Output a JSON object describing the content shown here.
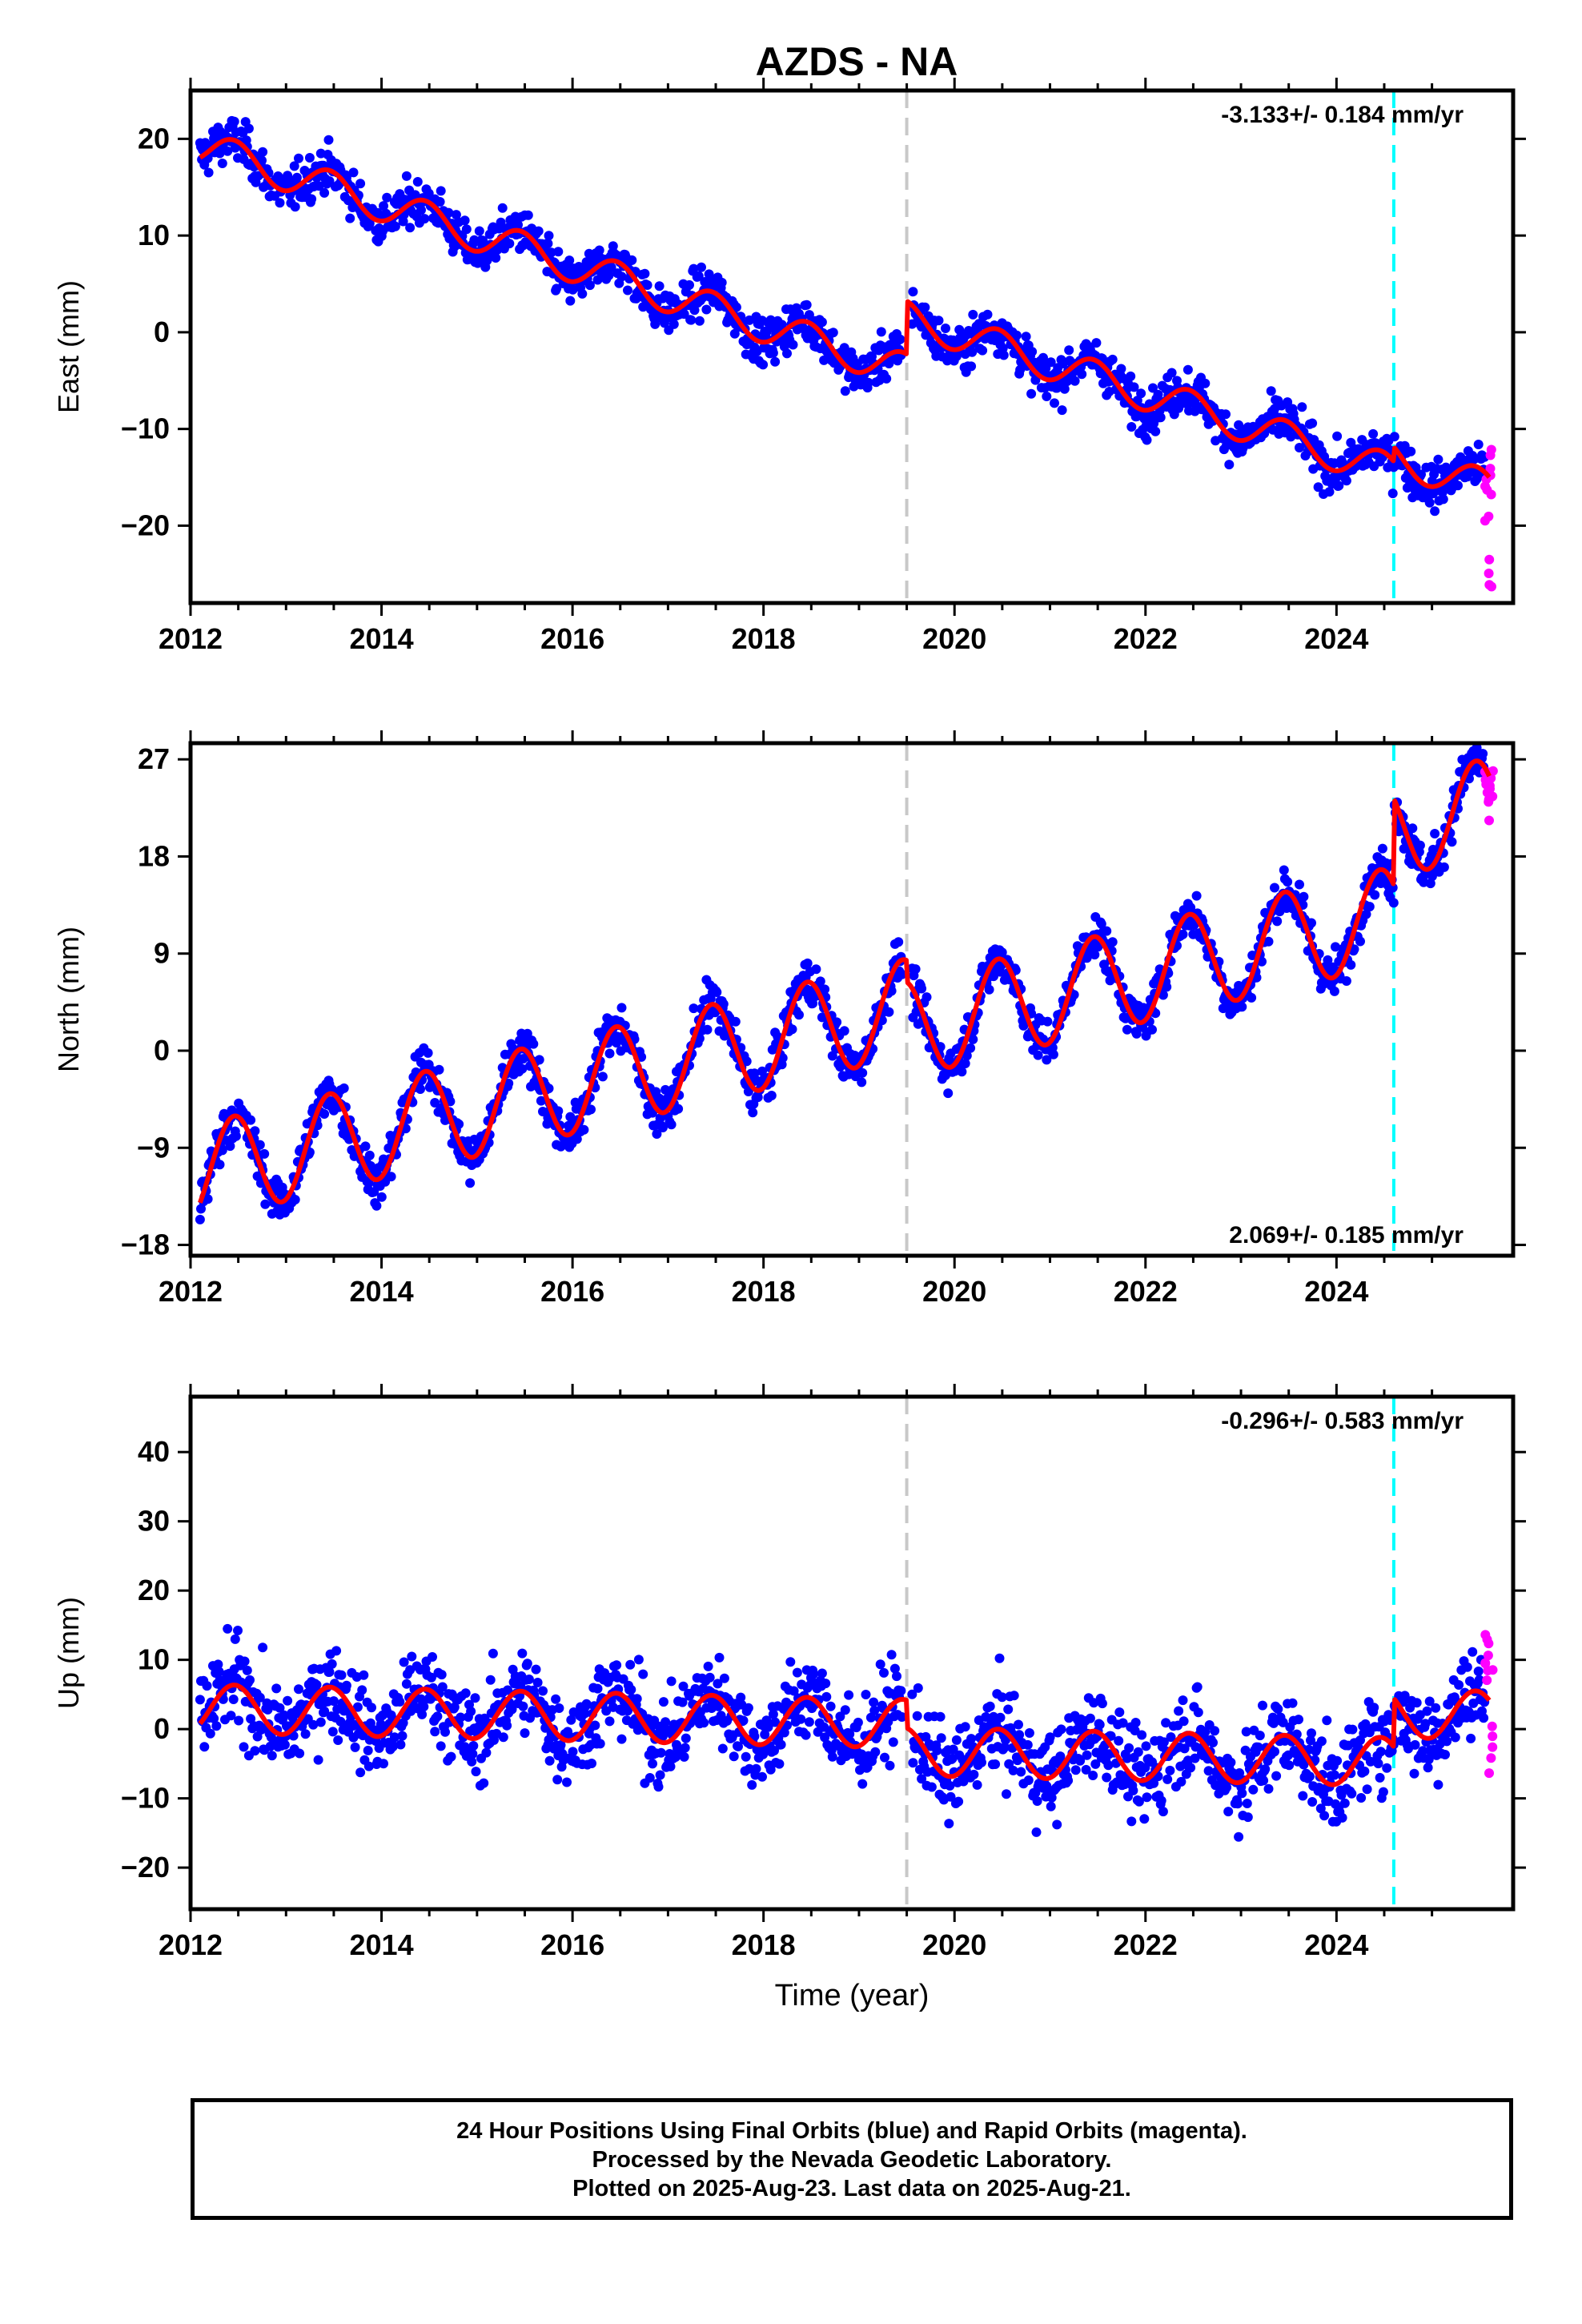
{
  "title": "AZDS - NA",
  "footer": {
    "line1": "24 Hour Positions Using Final Orbits (blue) and Rapid Orbits (magenta).",
    "line2": "Processed by the Nevada Geodetic Laboratory.",
    "line3": "Plotted on 2025-Aug-23. Last data on 2025-Aug-21."
  },
  "colors": {
    "final_orbits": "#0000ff",
    "rapid_orbits": "#ff00ff",
    "model": "#ff0000",
    "equipment_change": "#c8c8c8",
    "earthquake": "#00ffff"
  },
  "chart_data": [
    {
      "type": "scatter",
      "ylabel": "East (mm)",
      "ylim": [
        -28,
        25
      ],
      "xlim": [
        2012.0,
        2025.85
      ],
      "xticks": [
        2012,
        2014,
        2016,
        2018,
        2020,
        2022,
        2024
      ],
      "yticks": [
        20,
        10,
        0,
        -10,
        -20
      ],
      "rate_label": "-3.133+/- 0.184 mm/yr",
      "rate_label_position": "top-right",
      "grid": false,
      "vertical_lines": [
        {
          "x": 2019.5,
          "kind": "equipment-change",
          "color": "#c8c8c8"
        },
        {
          "x": 2024.6,
          "kind": "earthquake",
          "color": "#00ffff"
        }
      ],
      "model_series": {
        "name": "model",
        "trend_mm_per_yr": -3.133,
        "annual_amplitude_mm": 1.8,
        "intercept_2012_mm": 19.5,
        "offsets": [
          {
            "x": 2019.5,
            "step_mm": 5.5
          },
          {
            "x": 2024.6,
            "step_mm": 1.5
          }
        ]
      },
      "final_orbits": {
        "x_range": [
          2012.1,
          2025.55
        ],
        "scatter_mm": 1.6
      },
      "rapid_orbits": {
        "x_range": [
          2025.55,
          2025.64
        ],
        "y_range": [
          -26.5,
          -12
        ]
      }
    },
    {
      "type": "scatter",
      "ylabel": "North (mm)",
      "ylim": [
        -19,
        28.5
      ],
      "xlim": [
        2012.0,
        2025.85
      ],
      "xticks": [
        2012,
        2014,
        2016,
        2018,
        2020,
        2022,
        2024
      ],
      "yticks": [
        27,
        18,
        9,
        0,
        -9,
        -18
      ],
      "rate_label": "2.069+/- 0.185 mm/yr",
      "rate_label_position": "bottom-right",
      "grid": false,
      "vertical_lines": [
        {
          "x": 2019.5,
          "kind": "equipment-change",
          "color": "#c8c8c8"
        },
        {
          "x": 2024.6,
          "kind": "earthquake",
          "color": "#00ffff"
        }
      ],
      "model_series": {
        "name": "model",
        "trend_mm_per_yr": 2.069,
        "annual_amplitude_mm": 4.5,
        "intercept_2012_mm": -11.5,
        "offsets": [
          {
            "x": 2019.5,
            "step_mm": -2.0
          },
          {
            "x": 2024.6,
            "step_mm": 8.0
          }
        ]
      },
      "final_orbits": {
        "x_range": [
          2012.1,
          2025.55
        ],
        "scatter_mm": 1.5
      },
      "rapid_orbits": {
        "x_range": [
          2025.55,
          2025.64
        ],
        "y_range": [
          21,
          26
        ]
      }
    },
    {
      "type": "scatter",
      "ylabel": "Up (mm)",
      "xlabel": "Time (year)",
      "ylim": [
        -26,
        48
      ],
      "xlim": [
        2012.0,
        2025.85
      ],
      "xticks": [
        2012,
        2014,
        2016,
        2018,
        2020,
        2022,
        2024
      ],
      "yticks": [
        40,
        30,
        20,
        10,
        0,
        -10,
        -20
      ],
      "rate_label": "-0.296+/- 0.583 mm/yr",
      "rate_label_position": "top-right",
      "grid": false,
      "vertical_lines": [
        {
          "x": 2019.5,
          "kind": "equipment-change",
          "color": "#c8c8c8"
        },
        {
          "x": 2024.6,
          "kind": "earthquake",
          "color": "#00ffff"
        }
      ],
      "model_series": {
        "name": "model",
        "trend_mm_per_yr": -0.296,
        "annual_amplitude_mm": 3.5,
        "intercept_2012_mm": 3.0,
        "offsets": [
          {
            "x": 2019.5,
            "step_mm": -4.0
          },
          {
            "x": 2024.6,
            "step_mm": 7.0
          }
        ]
      },
      "final_orbits": {
        "x_range": [
          2012.1,
          2025.55
        ],
        "scatter_mm": 4.5
      },
      "rapid_orbits": {
        "x_range": [
          2025.55,
          2025.64
        ],
        "y_range": [
          -7,
          15
        ]
      }
    }
  ]
}
